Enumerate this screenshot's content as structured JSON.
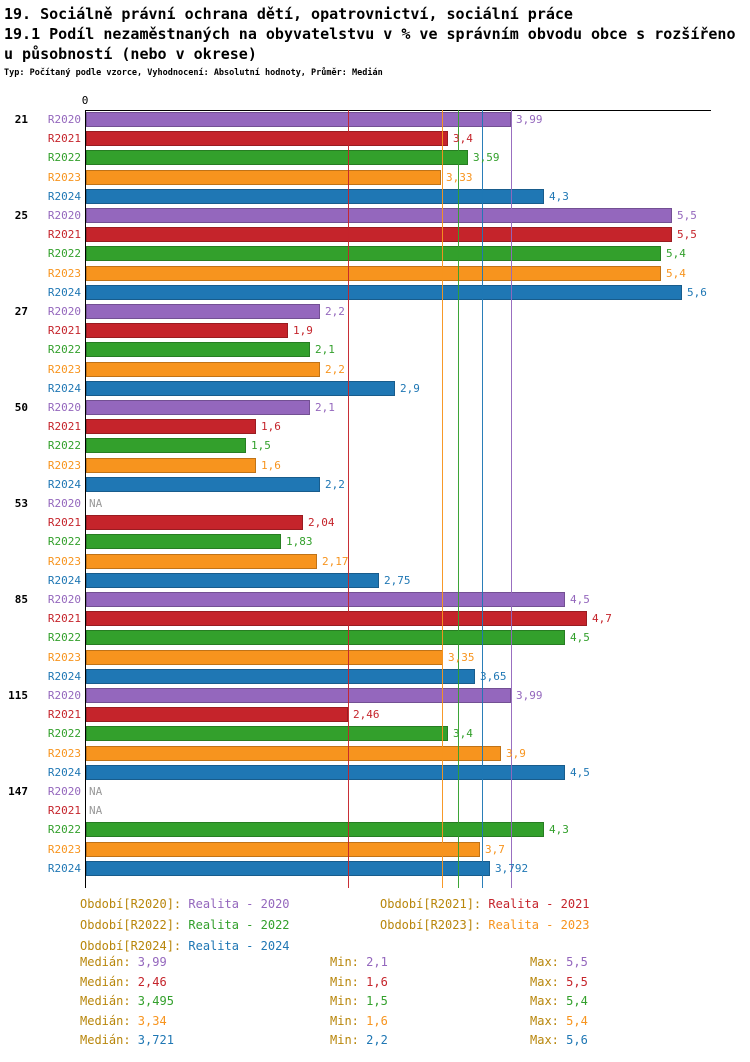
{
  "header": {
    "title_line1": "19. Sociálně právní ochrana dětí, opatrovnictví, sociální práce",
    "title_line2": "19.1 Podíl nezaměstnaných na obyvatelstvu v % ve správním obvodu obce s rozšířeno",
    "title_line3": "u působností (nebo v okrese)",
    "subtitle": "Typ: Počítaný podle vzorce, Vyhodnocení: Absolutní hodnoty, Průměr: Medián"
  },
  "chart_data": {
    "type": "bar",
    "orientation": "horizontal",
    "title": "19.1 Podíl nezaměstnaných na obyvatelstvu v % ve správním obvodu obce s rozšířenou působností (nebo v okrese)",
    "value_unit": "%",
    "axis_zero_label": "0",
    "xlim": [
      0,
      5.85
    ],
    "grid": false,
    "legend_position": "bottom",
    "na_label": "NA",
    "na_color": "#999999",
    "label_color": "#B8860B",
    "groups": [
      "21",
      "25",
      "27",
      "50",
      "53",
      "85",
      "115",
      "147"
    ],
    "series": [
      {
        "name": "R2020",
        "color": "#9467BD",
        "legend_prefix": "Období[R2020]:",
        "legend_label": "Realita - 2020",
        "values": [
          3.99,
          5.5,
          2.2,
          2.1,
          null,
          4.5,
          3.99,
          null
        ],
        "value_labels": [
          "3,99",
          "5,5",
          "2,2",
          "2,1",
          "NA",
          "4,5",
          "3,99",
          "NA"
        ],
        "median": 3.99,
        "stats": {
          "median": "3,99",
          "min": "2,1",
          "max": "5,5"
        }
      },
      {
        "name": "R2021",
        "color": "#C5242B",
        "legend_prefix": "Období[R2021]:",
        "legend_label": "Realita - 2021",
        "values": [
          3.4,
          5.5,
          1.9,
          1.6,
          2.04,
          4.7,
          2.46,
          null
        ],
        "value_labels": [
          "3,4",
          "5,5",
          "1,9",
          "1,6",
          "2,04",
          "4,7",
          "2,46",
          "NA"
        ],
        "median": 2.46,
        "stats": {
          "median": "2,46",
          "min": "1,6",
          "max": "5,5"
        }
      },
      {
        "name": "R2022",
        "color": "#33A02C",
        "legend_prefix": "Období[R2022]:",
        "legend_label": "Realita - 2022",
        "values": [
          3.59,
          5.4,
          2.1,
          1.5,
          1.83,
          4.5,
          3.4,
          4.3
        ],
        "value_labels": [
          "3,59",
          "5,4",
          "2,1",
          "1,5",
          "1,83",
          "4,5",
          "3,4",
          "4,3"
        ],
        "median": 3.495,
        "stats": {
          "median": "3,495",
          "min": "1,5",
          "max": "5,4"
        }
      },
      {
        "name": "R2023",
        "color": "#F7941E",
        "legend_prefix": "Období[R2023]:",
        "legend_label": "Realita - 2023",
        "values": [
          3.33,
          5.4,
          2.2,
          1.6,
          2.17,
          3.35,
          3.9,
          3.7
        ],
        "value_labels": [
          "3,33",
          "5,4",
          "2,2",
          "1,6",
          "2,17",
          "3,35",
          "3,9",
          "3,7"
        ],
        "median": 3.34,
        "stats": {
          "median": "3,34",
          "min": "1,6",
          "max": "5,4"
        }
      },
      {
        "name": "R2024",
        "color": "#1F77B4",
        "legend_prefix": "Období[R2024]:",
        "legend_label": "Realita - 2024",
        "values": [
          4.3,
          5.6,
          2.9,
          2.2,
          2.75,
          3.65,
          4.5,
          3.792
        ],
        "value_labels": [
          "4,3",
          "5,6",
          "2,9",
          "2,2",
          "2,75",
          "3,65",
          "4,5",
          "3,792"
        ],
        "median": 3.721,
        "stats": {
          "median": "3,721",
          "min": "2,2",
          "max": "5,6"
        }
      }
    ],
    "stats_labels": {
      "median": "Medián:",
      "min": "Min:",
      "max": "Max:"
    }
  }
}
